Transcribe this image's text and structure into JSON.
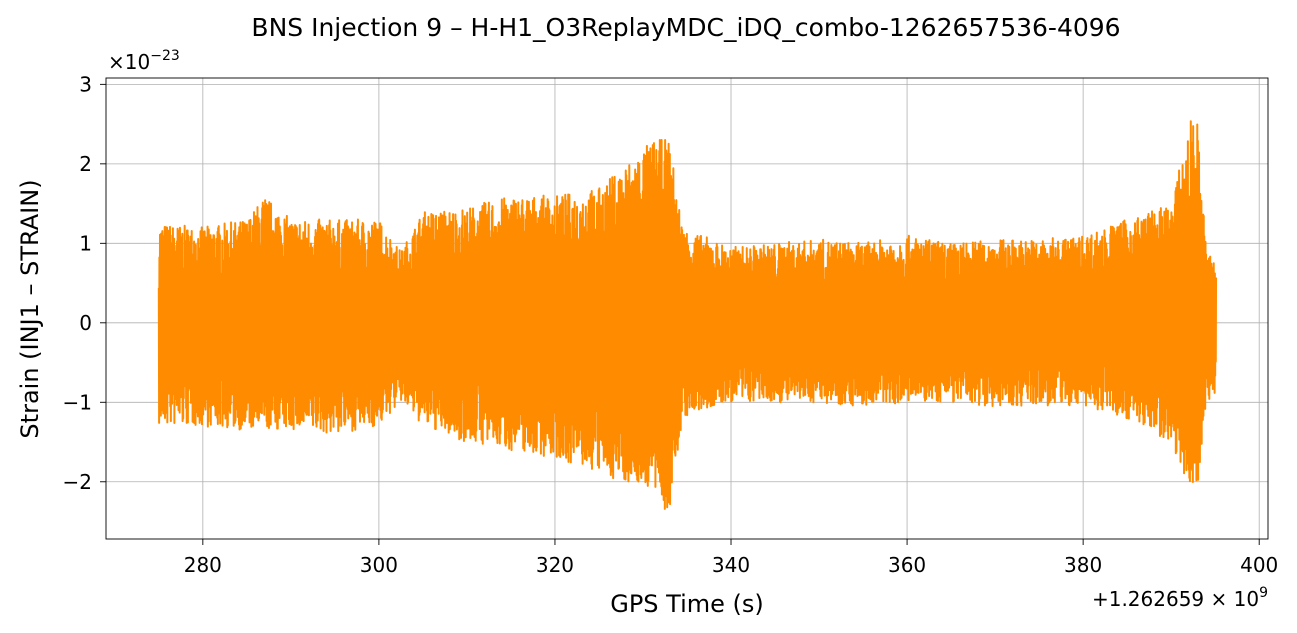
{
  "chart_data": {
    "type": "line",
    "title": "BNS Injection 9 – H-H1_O3ReplayMDC_iDQ_combo-1262657536-4096",
    "xlabel": "GPS Time (s)",
    "ylabel": "Strain (INJ1 – STRAIN)",
    "x_offset_label": "+1.262659 × 10",
    "x_offset_exponent": "9",
    "y_scale_label": "×10",
    "y_scale_exponent": "−23",
    "xlim": [
      269,
      401
    ],
    "ylim": [
      -2.72,
      3.08
    ],
    "x_ticks": [
      280,
      300,
      320,
      340,
      360,
      380,
      400
    ],
    "x_tick_labels": [
      "280",
      "300",
      "320",
      "340",
      "360",
      "380",
      "400"
    ],
    "y_ticks": [
      -2,
      -1,
      0,
      1,
      2,
      3
    ],
    "y_tick_labels": [
      "−2",
      "−1",
      "0",
      "1",
      "2",
      "3"
    ],
    "grid": true,
    "line_color": "#ff8c00",
    "series": [
      {
        "x_start": 275.0,
        "x_end": 395.1,
        "envelope": [
          {
            "x": 275.0,
            "max": 1.25,
            "min": -1.3
          },
          {
            "x": 280.0,
            "max": 1.2,
            "min": -1.3
          },
          {
            "x": 285.0,
            "max": 1.3,
            "min": -1.35
          },
          {
            "x": 287.0,
            "max": 1.6,
            "min": -1.35
          },
          {
            "x": 290.0,
            "max": 1.3,
            "min": -1.35
          },
          {
            "x": 295.0,
            "max": 1.3,
            "min": -1.4
          },
          {
            "x": 300.0,
            "max": 1.3,
            "min": -1.3
          },
          {
            "x": 302.5,
            "max": 0.9,
            "min": -1.0
          },
          {
            "x": 305.0,
            "max": 1.4,
            "min": -1.3
          },
          {
            "x": 310.0,
            "max": 1.45,
            "min": -1.5
          },
          {
            "x": 315.0,
            "max": 1.6,
            "min": -1.6
          },
          {
            "x": 320.0,
            "max": 1.6,
            "min": -1.7
          },
          {
            "x": 325.0,
            "max": 1.7,
            "min": -1.9
          },
          {
            "x": 328.0,
            "max": 2.0,
            "min": -2.0
          },
          {
            "x": 331.0,
            "max": 2.3,
            "min": -2.1
          },
          {
            "x": 333.0,
            "max": 2.3,
            "min": -2.45
          },
          {
            "x": 334.5,
            "max": 1.2,
            "min": -1.2
          },
          {
            "x": 340.0,
            "max": 0.95,
            "min": -1.0
          },
          {
            "x": 345.0,
            "max": 1.0,
            "min": -1.0
          },
          {
            "x": 350.0,
            "max": 1.05,
            "min": -1.0
          },
          {
            "x": 355.0,
            "max": 1.0,
            "min": -1.05
          },
          {
            "x": 360.0,
            "max": 1.1,
            "min": -1.0
          },
          {
            "x": 365.0,
            "max": 1.0,
            "min": -1.0
          },
          {
            "x": 370.0,
            "max": 1.05,
            "min": -1.05
          },
          {
            "x": 375.0,
            "max": 1.05,
            "min": -1.05
          },
          {
            "x": 380.0,
            "max": 1.1,
            "min": -1.05
          },
          {
            "x": 385.0,
            "max": 1.3,
            "min": -1.2
          },
          {
            "x": 390.0,
            "max": 1.5,
            "min": -1.5
          },
          {
            "x": 392.8,
            "max": 2.8,
            "min": -2.25
          },
          {
            "x": 394.0,
            "max": 0.9,
            "min": -1.0
          },
          {
            "x": 395.1,
            "max": 0.8,
            "min": -0.9
          }
        ]
      }
    ]
  }
}
